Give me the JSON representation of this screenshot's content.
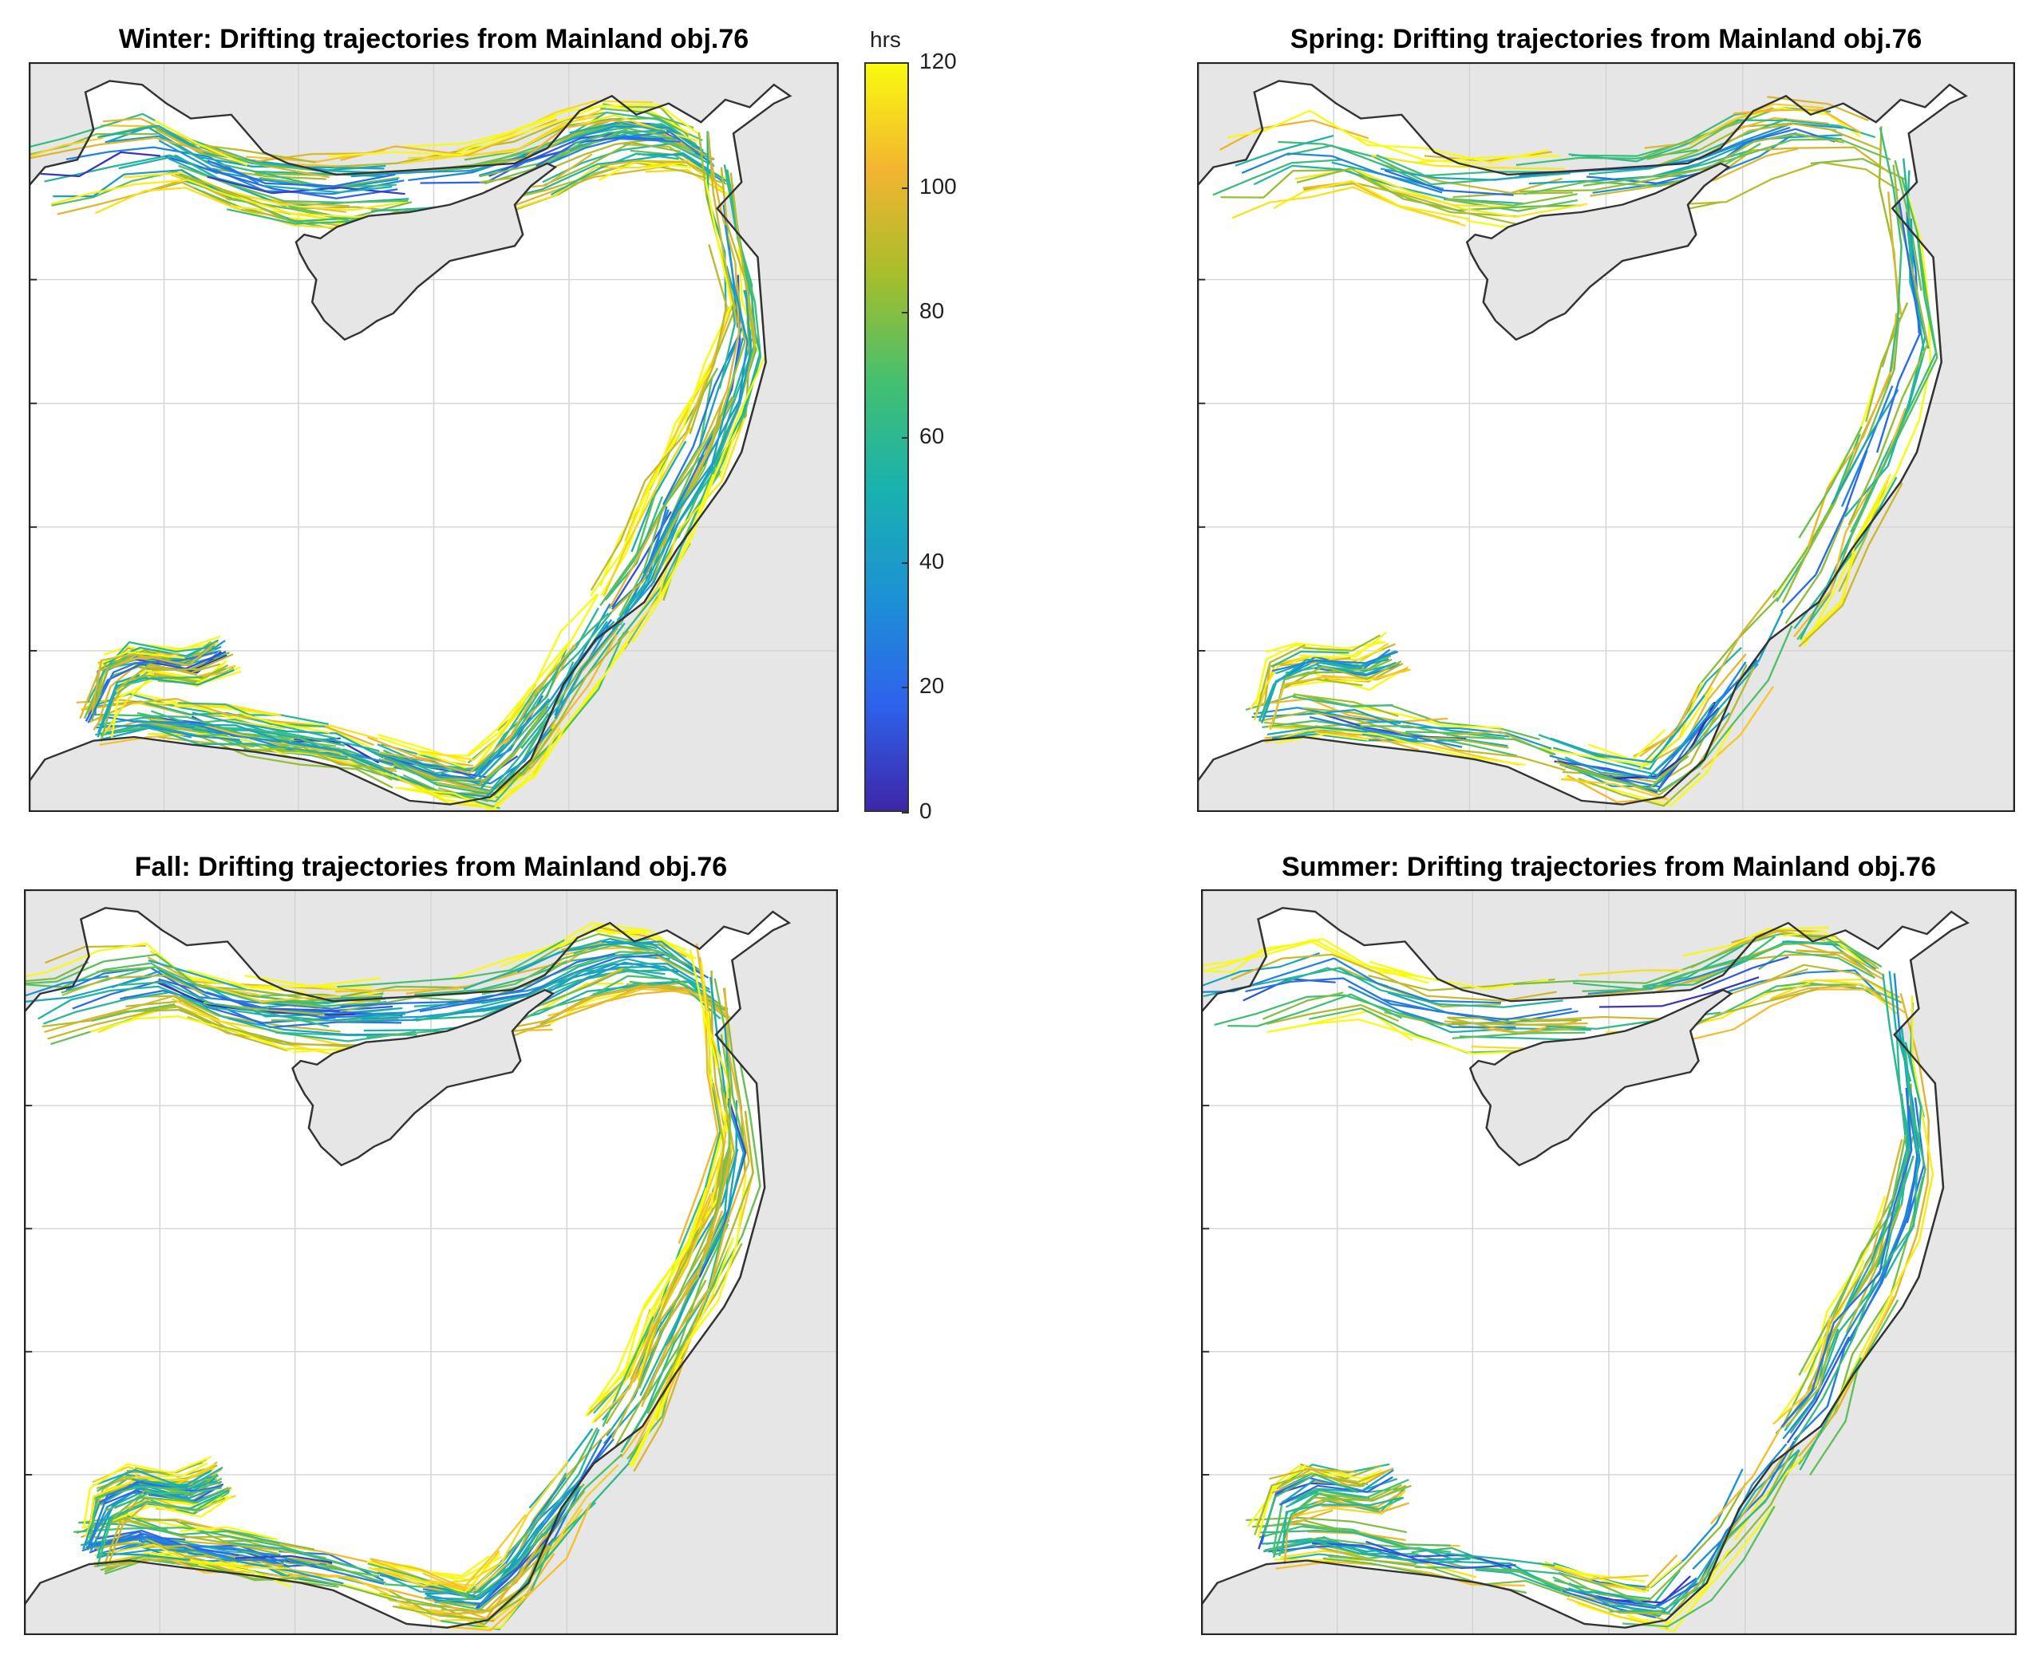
{
  "figure": {
    "panels": [
      {
        "id": "winter",
        "title": "Winter: Drifting trajectories from Mainland obj.76",
        "density": 1.0
      },
      {
        "id": "spring",
        "title": "Spring: Drifting trajectories from Mainland obj.76",
        "density": 0.55
      },
      {
        "id": "fall",
        "title": "Fall: Drifting trajectories from Mainland obj.76",
        "density": 1.0
      },
      {
        "id": "summer",
        "title": "Summer: Drifting trajectories from Mainland obj.76",
        "density": 0.6
      }
    ],
    "colorbar": {
      "unit": "hrs",
      "ticks": [
        "120",
        "100",
        "80",
        "60",
        "40",
        "20",
        "0"
      ],
      "range": [
        0,
        120
      ],
      "colormap": [
        "#3e26a8",
        "#2e62ec",
        "#1d91d5",
        "#19b1b0",
        "#43bf71",
        "#a5be2b",
        "#f3b431",
        "#f9fb0e"
      ]
    },
    "colors": {
      "land": "#e6e6e6",
      "sea": "#ffffff",
      "coastline": "#333333",
      "grid": "#d4d4d4"
    }
  }
}
